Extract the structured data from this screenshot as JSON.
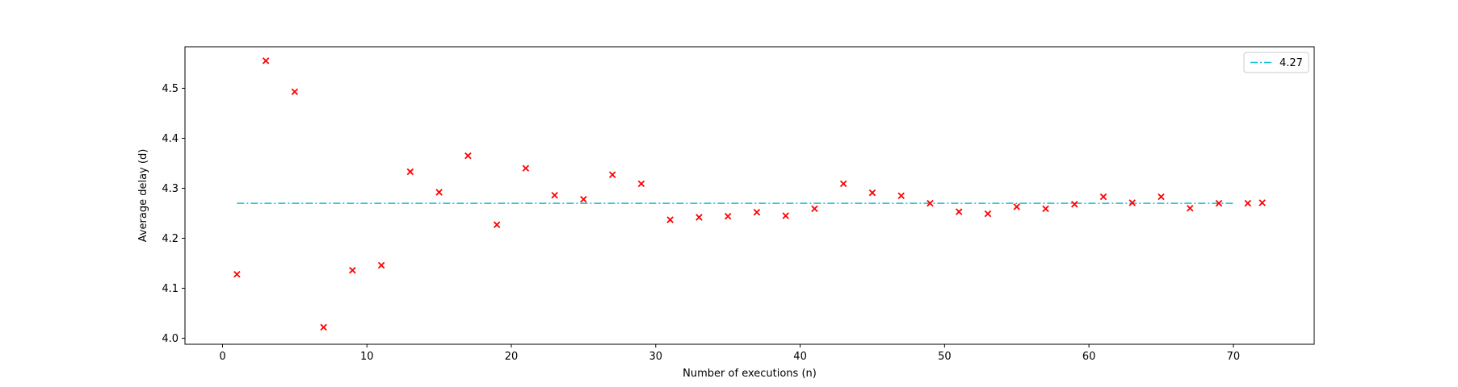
{
  "chart_data": {
    "type": "scatter",
    "title": "",
    "xlabel": "Number of executions (n)",
    "ylabel": "Average delay (d)",
    "xlim": [
      -2.6,
      75.6
    ],
    "ylim": [
      3.988,
      4.583
    ],
    "xticks": [
      0,
      10,
      20,
      30,
      40,
      50,
      60,
      70
    ],
    "yticks": [
      4.0,
      4.1,
      4.2,
      4.3,
      4.4,
      4.5
    ],
    "xtick_labels": [
      "0",
      "10",
      "20",
      "30",
      "40",
      "50",
      "60",
      "70"
    ],
    "ytick_labels": [
      "4.0",
      "4.1",
      "4.2",
      "4.3",
      "4.4",
      "4.5"
    ],
    "grid": false,
    "legend_position": "top-right",
    "series": [
      {
        "marker": "x",
        "color": "#ff0000",
        "x": [
          1,
          3,
          5,
          7,
          9,
          11,
          13,
          15,
          17,
          19,
          21,
          23,
          25,
          27,
          29,
          31,
          33,
          35,
          37,
          39,
          41,
          43,
          45,
          47,
          49,
          51,
          53,
          55,
          57,
          59,
          61,
          63,
          65,
          67,
          69,
          71,
          72
        ],
        "y": [
          4.128,
          4.555,
          4.493,
          4.022,
          4.136,
          4.146,
          4.333,
          4.292,
          4.365,
          4.227,
          4.34,
          4.286,
          4.278,
          4.327,
          4.309,
          4.237,
          4.242,
          4.244,
          4.252,
          4.245,
          4.259,
          4.309,
          4.291,
          4.285,
          4.27,
          4.253,
          4.249,
          4.263,
          4.259,
          4.268,
          4.283,
          4.271,
          4.283,
          4.26,
          4.27,
          4.27,
          4.271
        ]
      },
      {
        "name": "4.27",
        "type": "line",
        "line_style": "dash-dot",
        "color": "#17becf",
        "x": [
          1,
          70
        ],
        "y": [
          4.27,
          4.27
        ]
      }
    ]
  }
}
